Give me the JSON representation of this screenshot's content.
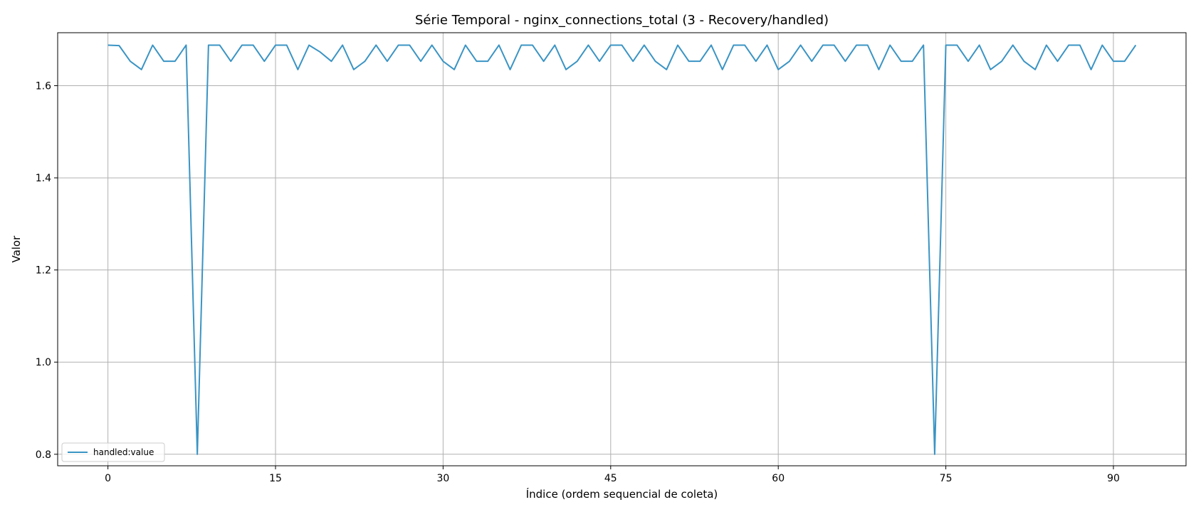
{
  "chart_data": {
    "type": "line",
    "title": "Série Temporal - nginx_connections_total (3 - Recovery/handled)",
    "xlabel": "Índice (ordem sequencial de coleta)",
    "ylabel": "Valor",
    "xlim": [
      -4.5,
      96.5
    ],
    "ylim": [
      0.775,
      1.715
    ],
    "xticks": [
      0,
      15,
      30,
      45,
      60,
      75,
      90
    ],
    "yticks": [
      0.8,
      1.0,
      1.2,
      1.4,
      1.6
    ],
    "ytick_labels": [
      "0.8",
      "1.0",
      "1.2",
      "1.4",
      "1.6"
    ],
    "grid": true,
    "legend_position": "lower-left",
    "series": [
      {
        "name": "handled:value",
        "color": "#3a94c4",
        "x": [
          0,
          1,
          2,
          3,
          4,
          5,
          6,
          7,
          8,
          9,
          10,
          11,
          12,
          13,
          14,
          15,
          16,
          17,
          18,
          19,
          20,
          21,
          22,
          23,
          24,
          25,
          26,
          27,
          28,
          29,
          30,
          31,
          32,
          33,
          34,
          35,
          36,
          37,
          38,
          39,
          40,
          41,
          42,
          43,
          44,
          45,
          46,
          47,
          48,
          49,
          50,
          51,
          52,
          53,
          54,
          55,
          56,
          57,
          58,
          59,
          60,
          61,
          62,
          63,
          64,
          65,
          66,
          67,
          68,
          69,
          70,
          71,
          72,
          73,
          74,
          75,
          76,
          77,
          78,
          79,
          80,
          81,
          82,
          83,
          84,
          85,
          86,
          87,
          88,
          89,
          90,
          91,
          92
        ],
        "values": [
          1.688,
          1.687,
          1.653,
          1.635,
          1.688,
          1.653,
          1.653,
          1.688,
          0.8,
          1.688,
          1.688,
          1.653,
          1.688,
          1.688,
          1.653,
          1.688,
          1.688,
          1.635,
          1.688,
          1.673,
          1.653,
          1.688,
          1.635,
          1.653,
          1.688,
          1.653,
          1.688,
          1.688,
          1.653,
          1.688,
          1.653,
          1.635,
          1.688,
          1.653,
          1.653,
          1.688,
          1.635,
          1.688,
          1.688,
          1.653,
          1.688,
          1.635,
          1.653,
          1.688,
          1.653,
          1.688,
          1.688,
          1.653,
          1.688,
          1.653,
          1.635,
          1.688,
          1.653,
          1.653,
          1.688,
          1.635,
          1.688,
          1.688,
          1.653,
          1.688,
          1.635,
          1.653,
          1.688,
          1.653,
          1.688,
          1.688,
          1.653,
          1.688,
          1.688,
          1.635,
          1.688,
          1.653,
          1.653,
          1.688,
          0.8,
          1.688,
          1.688,
          1.653,
          1.688,
          1.635,
          1.653,
          1.688,
          1.653,
          1.635,
          1.688,
          1.653,
          1.688,
          1.688,
          1.635,
          1.688,
          1.653,
          1.653,
          1.688
        ]
      }
    ]
  }
}
